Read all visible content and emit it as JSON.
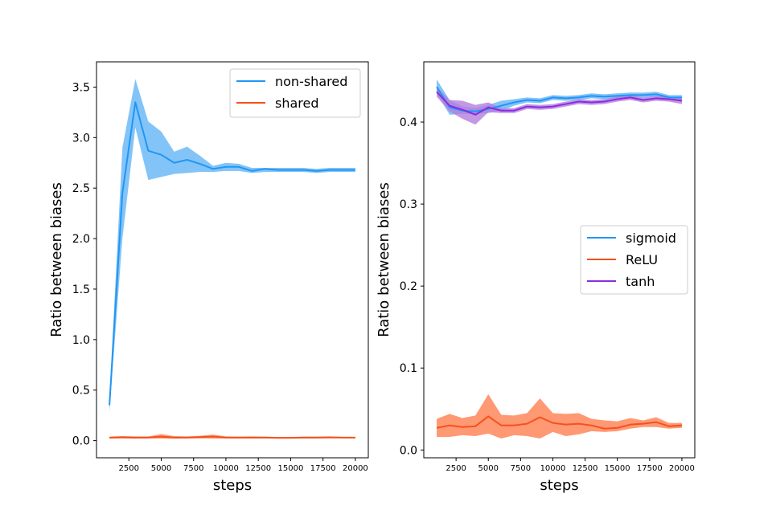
{
  "chart_data": [
    {
      "type": "line",
      "title": "",
      "xlabel": "steps",
      "ylabel": "Ratio between biases",
      "xlim": [
        0,
        21000
      ],
      "ylim": [
        -0.17,
        3.75
      ],
      "xticks": [
        2500,
        5000,
        7500,
        10000,
        12500,
        15000,
        17500,
        20000
      ],
      "xtick_labels": [
        "2500",
        "5000",
        "7500",
        "10000",
        "12500",
        "15000",
        "17500",
        "20000"
      ],
      "yticks": [
        0.0,
        0.5,
        1.0,
        1.5,
        2.0,
        2.5,
        3.0,
        3.5
      ],
      "ytick_labels": [
        "0.0",
        "0.5",
        "1.0",
        "1.5",
        "2.0",
        "2.5",
        "3.0",
        "3.5"
      ],
      "legend_position": "top-right",
      "grid": false,
      "x": [
        1000,
        2000,
        3000,
        4000,
        5000,
        6000,
        7000,
        8000,
        9000,
        10000,
        11000,
        12000,
        13000,
        14000,
        15000,
        16000,
        17000,
        18000,
        19000,
        20000
      ],
      "series": [
        {
          "name": "non-shared",
          "color": "#2196f3",
          "fill": "#64b5f6",
          "values": [
            0.35,
            2.45,
            3.35,
            2.87,
            2.83,
            2.75,
            2.78,
            2.74,
            2.69,
            2.71,
            2.71,
            2.67,
            2.69,
            2.68,
            2.68,
            2.68,
            2.67,
            2.68,
            2.68,
            2.68
          ],
          "lower": [
            0.28,
            2.0,
            3.1,
            2.58,
            2.61,
            2.64,
            2.65,
            2.66,
            2.66,
            2.67,
            2.67,
            2.65,
            2.66,
            2.66,
            2.66,
            2.66,
            2.65,
            2.66,
            2.66,
            2.66
          ],
          "upper": [
            0.42,
            2.9,
            3.58,
            3.16,
            3.06,
            2.86,
            2.91,
            2.82,
            2.72,
            2.75,
            2.74,
            2.7,
            2.7,
            2.7,
            2.7,
            2.7,
            2.69,
            2.7,
            2.7,
            2.7
          ]
        },
        {
          "name": "shared",
          "color": "#f4511e",
          "fill": "#ff7f50",
          "values": [
            0.03,
            0.033,
            0.03,
            0.03,
            0.04,
            0.03,
            0.03,
            0.035,
            0.04,
            0.03,
            0.03,
            0.03,
            0.03,
            0.028,
            0.028,
            0.03,
            0.03,
            0.032,
            0.03,
            0.03
          ],
          "lower": [
            0.02,
            0.022,
            0.02,
            0.022,
            0.02,
            0.02,
            0.022,
            0.022,
            0.02,
            0.022,
            0.022,
            0.022,
            0.022,
            0.02,
            0.02,
            0.022,
            0.022,
            0.024,
            0.024,
            0.024
          ],
          "upper": [
            0.04,
            0.045,
            0.042,
            0.042,
            0.065,
            0.045,
            0.042,
            0.048,
            0.06,
            0.042,
            0.04,
            0.042,
            0.04,
            0.036,
            0.036,
            0.04,
            0.04,
            0.042,
            0.038,
            0.036
          ]
        }
      ]
    },
    {
      "type": "line",
      "title": "",
      "xlabel": "steps",
      "ylabel": "Ratio between biases",
      "xlim": [
        0,
        21000
      ],
      "ylim": [
        -0.0095,
        0.4735
      ],
      "xticks": [
        2500,
        5000,
        7500,
        10000,
        12500,
        15000,
        17500,
        20000
      ],
      "xtick_labels": [
        "2500",
        "5000",
        "7500",
        "10000",
        "12500",
        "15000",
        "17500",
        "20000"
      ],
      "yticks": [
        0.0,
        0.1,
        0.2,
        0.3,
        0.4
      ],
      "ytick_labels": [
        "0.0",
        "0.1",
        "0.2",
        "0.3",
        "0.4"
      ],
      "legend_position": "center-right",
      "grid": false,
      "x": [
        1000,
        2000,
        3000,
        4000,
        5000,
        6000,
        7000,
        8000,
        9000,
        10000,
        11000,
        12000,
        13000,
        14000,
        15000,
        16000,
        17000,
        18000,
        19000,
        20000
      ],
      "series": [
        {
          "name": "sigmoid",
          "color": "#2196f3",
          "fill": "#64b5f6",
          "values": [
            0.443,
            0.418,
            0.414,
            0.413,
            0.416,
            0.42,
            0.424,
            0.427,
            0.426,
            0.43,
            0.429,
            0.43,
            0.432,
            0.431,
            0.432,
            0.433,
            0.433,
            0.434,
            0.43,
            0.43
          ],
          "lower": [
            0.435,
            0.409,
            0.41,
            0.41,
            0.411,
            0.414,
            0.42,
            0.424,
            0.423,
            0.427,
            0.426,
            0.427,
            0.429,
            0.428,
            0.429,
            0.43,
            0.43,
            0.431,
            0.427,
            0.427
          ],
          "upper": [
            0.452,
            0.427,
            0.419,
            0.417,
            0.421,
            0.426,
            0.428,
            0.43,
            0.429,
            0.433,
            0.432,
            0.433,
            0.435,
            0.434,
            0.435,
            0.436,
            0.436,
            0.437,
            0.433,
            0.433
          ]
        },
        {
          "name": "ReLU",
          "color": "#f4511e",
          "fill": "#ff7f50",
          "values": [
            0.027,
            0.03,
            0.028,
            0.029,
            0.041,
            0.03,
            0.03,
            0.032,
            0.04,
            0.033,
            0.031,
            0.032,
            0.03,
            0.026,
            0.027,
            0.031,
            0.032,
            0.034,
            0.029,
            0.03
          ],
          "lower": [
            0.016,
            0.016,
            0.018,
            0.017,
            0.02,
            0.014,
            0.018,
            0.017,
            0.014,
            0.022,
            0.017,
            0.019,
            0.023,
            0.022,
            0.023,
            0.026,
            0.028,
            0.028,
            0.026,
            0.027
          ],
          "upper": [
            0.038,
            0.044,
            0.039,
            0.042,
            0.068,
            0.043,
            0.042,
            0.045,
            0.063,
            0.045,
            0.044,
            0.045,
            0.038,
            0.036,
            0.035,
            0.039,
            0.036,
            0.04,
            0.033,
            0.033
          ]
        },
        {
          "name": "tanh",
          "color": "#8a2be2",
          "fill": "#b57edc",
          "values": [
            0.437,
            0.42,
            0.415,
            0.409,
            0.418,
            0.414,
            0.414,
            0.419,
            0.418,
            0.419,
            0.422,
            0.425,
            0.424,
            0.425,
            0.428,
            0.43,
            0.427,
            0.429,
            0.428,
            0.426
          ],
          "lower": [
            0.431,
            0.413,
            0.404,
            0.397,
            0.412,
            0.411,
            0.411,
            0.416,
            0.415,
            0.416,
            0.419,
            0.422,
            0.421,
            0.422,
            0.425,
            0.427,
            0.424,
            0.426,
            0.425,
            0.422
          ],
          "upper": [
            0.443,
            0.427,
            0.426,
            0.421,
            0.424,
            0.417,
            0.417,
            0.422,
            0.421,
            0.422,
            0.425,
            0.428,
            0.427,
            0.428,
            0.431,
            0.433,
            0.43,
            0.432,
            0.431,
            0.43
          ]
        }
      ]
    }
  ]
}
